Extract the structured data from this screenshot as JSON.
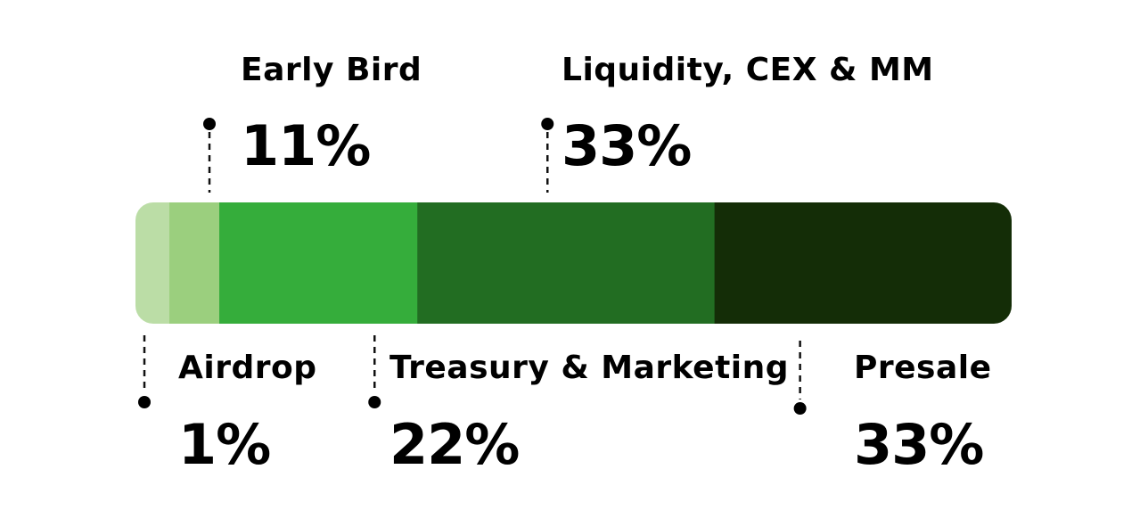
{
  "chart_data": {
    "type": "bar",
    "orientation": "horizontal-stacked",
    "title": "",
    "xlabel": "",
    "ylabel": "",
    "categories": [
      "Airdrop",
      "Early Bird",
      "Treasury & Marketing",
      "Liquidity, CEX & MM",
      "Presale"
    ],
    "values": [
      1,
      11,
      22,
      33,
      33
    ],
    "value_labels": [
      "1%",
      "11%",
      "22%",
      "33%",
      "33%"
    ],
    "series": [
      {
        "name": "Airdrop",
        "value": 1,
        "label": "1%",
        "color": "#BBDDA6",
        "side": "bottom"
      },
      {
        "name": "Early Bird",
        "value": 11,
        "label": "11%",
        "color": "#9BCF7E",
        "side": "top"
      },
      {
        "name": "Treasury & Marketing",
        "value": 22,
        "label": "22%",
        "color": "#35AD3B",
        "side": "bottom"
      },
      {
        "name": "Liquidity, CEX & MM",
        "value": 33,
        "label": "33%",
        "color": "#226D22",
        "side": "top"
      },
      {
        "name": "Presale",
        "value": 33,
        "label": "33%",
        "color": "#142D07",
        "side": "bottom"
      }
    ],
    "xlim": [
      0,
      100
    ],
    "legend": "none",
    "grid": false
  }
}
